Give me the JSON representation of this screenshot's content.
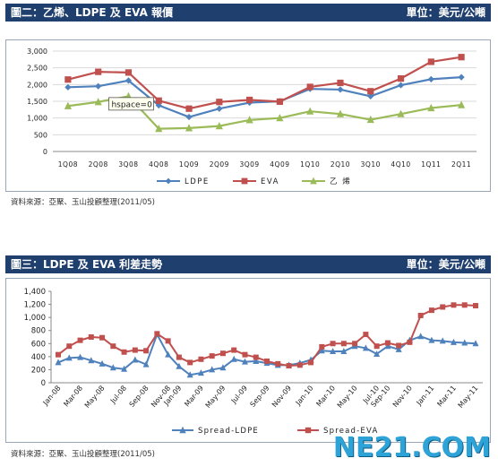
{
  "chart1": {
    "title_left": "圖二：乙烯、LDPE 及 EVA 報價",
    "title_right": "單位：美元/公噸",
    "source": "資料來源：亞聚、玉山投顧整理(2011/05)",
    "tooltip": "hspace=0"
  },
  "chart2": {
    "title_left": "圖三：LDPE 及 EVA 利差走勢",
    "title_right": "單位：美元/公噸",
    "source": "資料來源：亞聚、玉山投顧整理(2011/05)"
  },
  "watermark": "NE21.COM",
  "chart_data": [
    {
      "type": "line",
      "title": "圖二：乙烯、LDPE 及 EVA 報價",
      "unit": "單位：美元/公噸",
      "categories": [
        "1Q08",
        "2Q08",
        "3Q08",
        "4Q08",
        "1Q09",
        "2Q09",
        "3Q09",
        "4Q09",
        "1Q10",
        "2Q10",
        "3Q10",
        "4Q10",
        "1Q11",
        "2Q11"
      ],
      "ylim": [
        0,
        3000
      ],
      "yticks": [
        "0",
        "500",
        "1,000",
        "1,500",
        "2,000",
        "2,500",
        "3,000"
      ],
      "legend_position": "bottom",
      "series": [
        {
          "name": "LDPE",
          "color": "#4f81bd",
          "marker": "diamond",
          "values": [
            1920,
            1950,
            2120,
            1380,
            1030,
            1280,
            1460,
            1500,
            1870,
            1850,
            1650,
            1980,
            2160,
            2220
          ]
        },
        {
          "name": "EVA",
          "color": "#c0504d",
          "marker": "square",
          "values": [
            2150,
            2380,
            2360,
            1520,
            1280,
            1480,
            1540,
            1490,
            1930,
            2050,
            1800,
            2180,
            2680,
            2820
          ]
        },
        {
          "name": "乙 烯",
          "color": "#9bbb59",
          "marker": "triangle",
          "values": [
            1360,
            1480,
            1650,
            680,
            700,
            760,
            940,
            1000,
            1200,
            1120,
            950,
            1120,
            1300,
            1390
          ]
        }
      ]
    },
    {
      "type": "line",
      "title": "圖三：LDPE 及 EVA 利差走勢",
      "unit": "單位：美元/公噸",
      "x_tick_labels": [
        "Jan-08",
        "Mar-08",
        "May-08",
        "Jul-08",
        "Sep-08",
        "Nov-08",
        "Jan-09",
        "Mar-09",
        "May-09",
        "Jul-09",
        "Sep-09",
        "Nov-09",
        "Jan-10",
        "Mar-10",
        "May-10",
        "Jul-10",
        "Sep-10",
        "Nov-10",
        "Jan-11",
        "Mar-11",
        "May-11"
      ],
      "ylim": [
        0,
        1400
      ],
      "yticks": [
        "0",
        "200",
        "400",
        "600",
        "800",
        "1,000",
        "1,200",
        "1,400"
      ],
      "legend_position": "bottom",
      "series": [
        {
          "name": "Spread-LDPE",
          "color": "#4f81bd",
          "marker": "triangle",
          "values": [
            310,
            380,
            390,
            340,
            290,
            230,
            210,
            350,
            280,
            740,
            430,
            250,
            120,
            150,
            200,
            230,
            360,
            320,
            330,
            300,
            270,
            270,
            300,
            350,
            490,
            480,
            480,
            560,
            530,
            440,
            560,
            510,
            650,
            710,
            650,
            640,
            620,
            610,
            600
          ]
        },
        {
          "name": "Spread-EVA",
          "color": "#c0504d",
          "marker": "square",
          "values": [
            430,
            560,
            650,
            700,
            690,
            560,
            470,
            500,
            490,
            750,
            640,
            390,
            310,
            360,
            410,
            450,
            500,
            430,
            390,
            330,
            290,
            260,
            270,
            310,
            550,
            600,
            600,
            600,
            740,
            560,
            610,
            570,
            620,
            1030,
            1110,
            1160,
            1190,
            1190,
            1180
          ]
        }
      ]
    }
  ]
}
